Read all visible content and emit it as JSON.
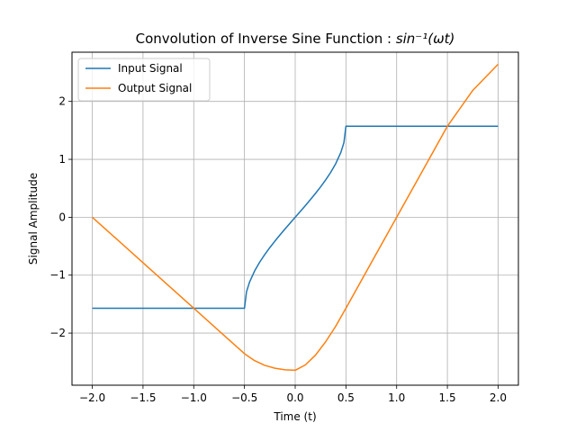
{
  "chart_data": {
    "type": "line",
    "title": "Convolution of Inverse Sine Function : ",
    "title_math": "sin⁻¹(ωt)",
    "xlabel": "Time (t)",
    "ylabel": "Signal Amplitude",
    "xlim": [
      -2.2,
      2.2
    ],
    "ylim": [
      -2.9,
      2.85
    ],
    "xticks": [
      -2.0,
      -1.5,
      -1.0,
      -0.5,
      0.0,
      0.5,
      1.0,
      1.5,
      2.0
    ],
    "xtick_labels": [
      "−2.0",
      "−1.5",
      "−1.0",
      "−0.5",
      "0.0",
      "0.5",
      "1.0",
      "1.5",
      "2.0"
    ],
    "yticks": [
      -2,
      -1,
      0,
      1,
      2
    ],
    "ytick_labels": [
      "−2",
      "−1",
      "0",
      "1",
      "2"
    ],
    "grid": true,
    "legend_position": "top-left",
    "series": [
      {
        "name": "Input Signal",
        "color": "#1f77b4",
        "x": [
          -2.0,
          -0.5,
          -0.5,
          -0.48,
          -0.45,
          -0.4,
          -0.35,
          -0.3,
          -0.25,
          -0.2,
          -0.15,
          -0.1,
          -0.05,
          0.0,
          0.05,
          0.1,
          0.15,
          0.2,
          0.25,
          0.3,
          0.35,
          0.4,
          0.45,
          0.48,
          0.5,
          0.5,
          2.0
        ],
        "y": [
          -1.571,
          -1.571,
          -1.571,
          -1.287,
          -1.12,
          -0.927,
          -0.775,
          -0.644,
          -0.524,
          -0.412,
          -0.305,
          -0.201,
          -0.1,
          0.0,
          0.1,
          0.201,
          0.305,
          0.412,
          0.524,
          0.644,
          0.775,
          0.927,
          1.12,
          1.287,
          1.571,
          1.571,
          1.571
        ]
      },
      {
        "name": "Output Signal",
        "color": "#ff7f0e",
        "x": [
          -2.0,
          -1.5,
          -1.0,
          -0.5,
          -0.4,
          -0.3,
          -0.2,
          -0.1,
          0.0,
          0.1,
          0.2,
          0.3,
          0.4,
          0.5,
          0.75,
          1.0,
          1.25,
          1.5,
          1.75,
          2.0
        ],
        "y": [
          0.0,
          -0.785,
          -1.571,
          -2.356,
          -2.476,
          -2.557,
          -2.607,
          -2.634,
          -2.642,
          -2.55,
          -2.38,
          -2.15,
          -1.88,
          -1.571,
          -0.785,
          0.0,
          0.785,
          1.571,
          2.19,
          2.642
        ]
      }
    ]
  }
}
